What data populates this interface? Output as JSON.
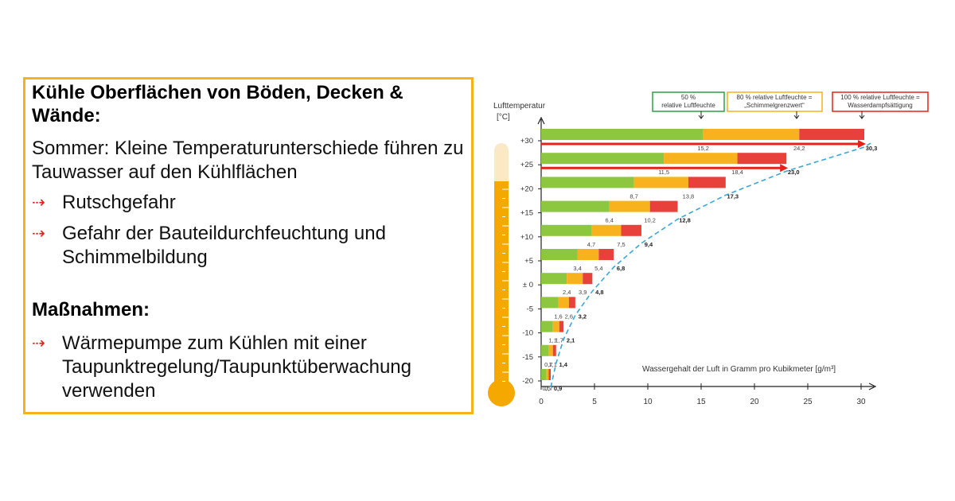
{
  "box": {
    "title": "Kühle Oberflächen von Böden, Decken & Wände:",
    "summer_text": "Sommer: Kleine Temperaturunterschiede führen zu Tauwasser auf den Kühlflächen",
    "bullets": [
      "Rutschgefahr",
      "Gefahr der Bauteildurchfeuchtung und Schimmelbildung"
    ],
    "measures_title": "Maßnahmen:",
    "measures": [
      "Wärmepumpe zum Kühlen mit einer Taupunktregelung/Taupunktüberwachung verwenden"
    ],
    "arrow_glyph": "⇢"
  },
  "chart_data": {
    "type": "bar",
    "ylabel": "Lufttemperatur",
    "ylabel_unit": "[°C]",
    "xlabel": "Wassergehalt der Luft in Gramm pro Kubikmeter [g/m³]",
    "xlim": [
      0,
      30
    ],
    "x_ticks": [
      0,
      5,
      10,
      15,
      20,
      25,
      30
    ],
    "categories": [
      "+30",
      "+25",
      "+20",
      "+15",
      "+10",
      "+5",
      "± 0",
      "-5",
      "-10",
      "-15",
      "-20"
    ],
    "series": [
      {
        "name": "50 %\nrelative Luftfeuchte",
        "color": "#8dc63f",
        "values": [
          15.2,
          11.5,
          8.7,
          6.4,
          4.7,
          3.4,
          2.4,
          1.6,
          1.1,
          0.7,
          0.5
        ]
      },
      {
        "name": "80 % relative Luftfeuchte =\n„Schimmelgrenzwert“",
        "color": "#f7b21e",
        "values": [
          24.2,
          18.4,
          13.8,
          10.2,
          7.5,
          5.4,
          3.9,
          2.6,
          1.7,
          1.1,
          0.7
        ]
      },
      {
        "name": "100 % relative Luftfeuchte =\nWasserdampfsättigung",
        "color": "#e8403a",
        "values": [
          30.3,
          23.0,
          17.3,
          12.8,
          9.4,
          6.8,
          4.8,
          3.2,
          2.1,
          1.4,
          0.9
        ]
      }
    ],
    "value_labels": {
      "series50": [
        "15,2",
        "11,5",
        "8,7",
        "6,4",
        "4,7",
        "3,4",
        "2,4",
        "1,6",
        "1,1",
        "0,7",
        "0,5"
      ],
      "series80": [
        "24,2",
        "18,4",
        "13,8",
        "10,2",
        "7,5",
        "5,4",
        "3,9",
        "2,6",
        "1,7",
        "1,1",
        "0,7"
      ],
      "series100": [
        "30,3",
        "23,0",
        "17,3",
        "12,8",
        "9,4",
        "6,8",
        "4,8",
        "3,2",
        "2,1",
        "1,4",
        "0,9"
      ]
    },
    "highlight_arrows": [
      30.3,
      23.0
    ],
    "colors": {
      "arrow": "#e2231a",
      "curve": "#3aa6d8",
      "thermometer_fill": "#f5a800",
      "thermometer_glass": "#fbe9c6",
      "legend50": "#2e9e48",
      "legend80": "#f5b21a",
      "legend100": "#e2231a"
    }
  }
}
